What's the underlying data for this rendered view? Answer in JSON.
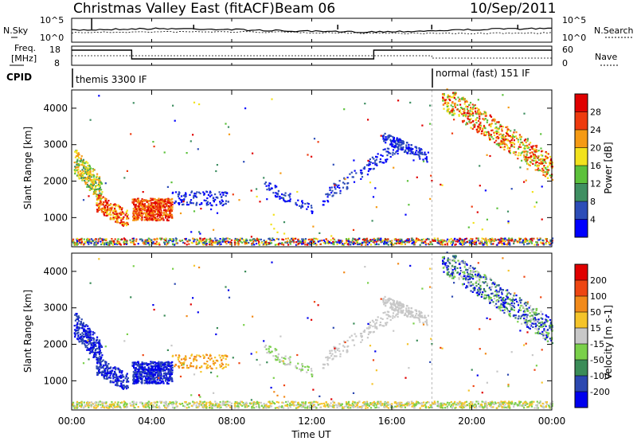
{
  "header": {
    "title": "Christmas Valley East (fitACF)",
    "beam": "Beam 06",
    "date": "10/Sep/2011"
  },
  "top_panels": {
    "nsky_label": "N.Sky",
    "nsearch_label": "N.Search",
    "noise_top_tick": "10^5",
    "noise_bottom_tick": "10^0",
    "freq_label_1": "Freq.",
    "freq_label_2": "[MHz]",
    "freq_top_tick": "18",
    "freq_bottom_tick": "8",
    "nave_label": "Nave",
    "nave_top_tick": "60",
    "nave_bottom_tick": "0",
    "cpid_label": "CPID",
    "cpid_mode_1": "themis 3300 IF",
    "cpid_mode_2": "normal (fast) 151 IF"
  },
  "chart_data": [
    {
      "type": "heatmap",
      "name": "power",
      "ylabel": "Slant Range [km]",
      "yticks": [
        "1000",
        "2000",
        "3000",
        "4000"
      ],
      "ylim": [
        200,
        4500
      ],
      "colorbar_label": "Power [dB]",
      "colorbar_ticks": [
        "4",
        "8",
        "12",
        "16",
        "20",
        "24",
        "28"
      ],
      "colors": [
        "#0000ff",
        "#2d4db8",
        "#3f8f62",
        "#5cc13b",
        "#f2e21d",
        "#f59a14",
        "#ee3a0e",
        "#e00000"
      ]
    },
    {
      "type": "heatmap",
      "name": "velocity",
      "ylabel": "Slant Range [km]",
      "yticks": [
        "1000",
        "2000",
        "3000",
        "4000"
      ],
      "ylim": [
        200,
        4500
      ],
      "colorbar_label": "Velocity [m s-1]",
      "colorbar_ticks": [
        "200",
        "100",
        "50",
        "15",
        "-15",
        "-50",
        "-100",
        "-200"
      ],
      "colors": [
        "#0000ee",
        "#2c48b0",
        "#3b8c58",
        "#7ad04a",
        "#c8c8c8",
        "#f5c42a",
        "#f28a1a",
        "#ee4612",
        "#e00000"
      ]
    }
  ],
  "xaxis": {
    "label": "Time UT",
    "ticks": [
      "00:00",
      "04:00",
      "08:00",
      "12:00",
      "16:00",
      "20:00",
      "00:00"
    ]
  }
}
